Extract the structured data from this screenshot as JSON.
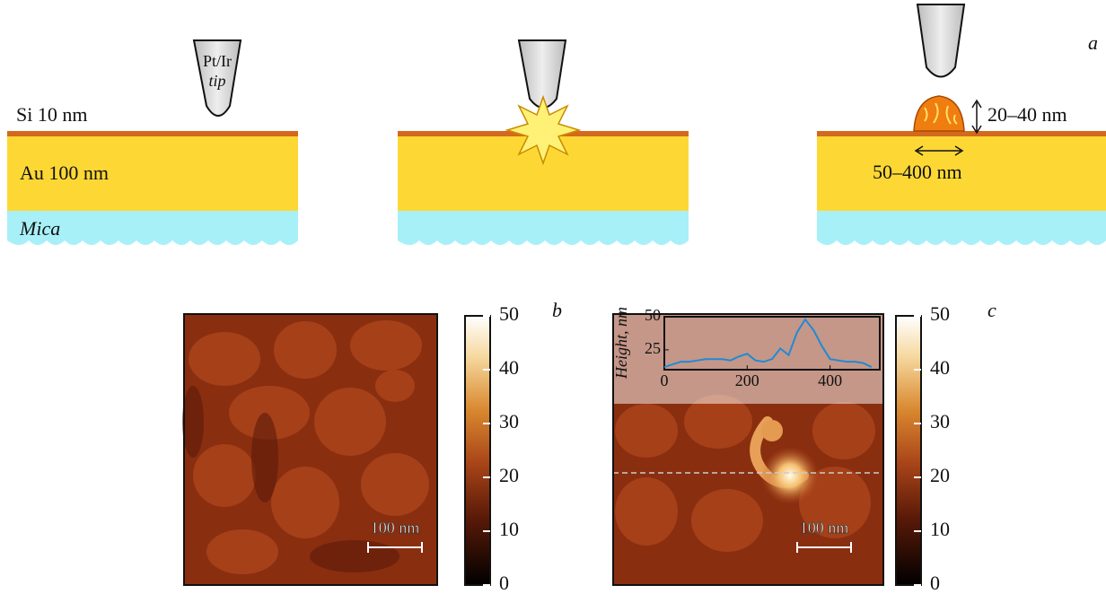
{
  "panel_a": {
    "label": "a",
    "si": "Si 10 nm",
    "au": "Au 100 nm",
    "mica": "Mica",
    "tip_material": "Pt/Ir",
    "tip": "tip",
    "height": "20–40 nm",
    "width": "50–400 nm"
  },
  "panel_b": {
    "label": "b",
    "scale_bar": "100 nm",
    "colorbar": {
      "lim": [
        0,
        50
      ],
      "ticks": [
        0,
        10,
        20,
        30,
        40,
        50
      ]
    }
  },
  "panel_c": {
    "label": "c",
    "scale_bar": "100 nm",
    "colorbar": {
      "lim": [
        0,
        50
      ],
      "ticks": [
        0,
        10,
        20,
        30,
        40,
        50
      ]
    },
    "profile": {
      "y_label": "Height, nm",
      "x": [
        0,
        20,
        40,
        60,
        80,
        100,
        120,
        140,
        160,
        180,
        200,
        220,
        240,
        260,
        280,
        300,
        320,
        340,
        360,
        380,
        400,
        420,
        440,
        460,
        480,
        500
      ],
      "values": [
        12,
        14,
        16,
        16,
        17,
        18,
        18,
        18,
        17,
        20,
        22,
        17,
        16,
        18,
        26,
        21,
        38,
        48,
        40,
        28,
        18,
        17,
        16,
        16,
        15,
        12
      ],
      "xlim": [
        0,
        520
      ],
      "ylim": [
        10,
        50
      ],
      "xticks": [
        0,
        200,
        400
      ],
      "yticks": [
        25,
        50
      ]
    }
  }
}
